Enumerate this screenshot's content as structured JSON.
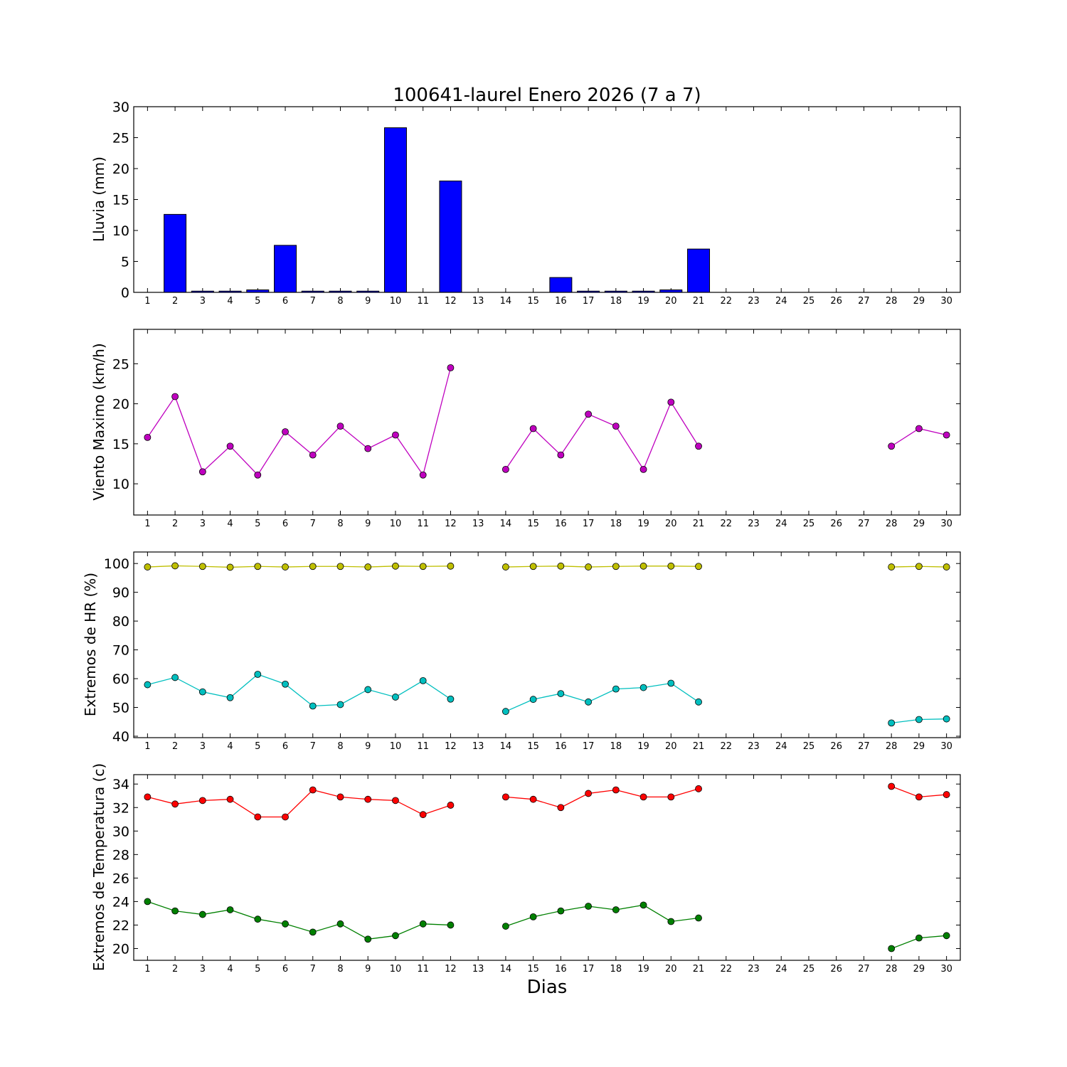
{
  "figure": {
    "title": "100641-laurel Enero 2026  (7 a 7)",
    "xlabel": "Dias"
  },
  "chart_data": [
    {
      "type": "bar",
      "ylabel": "Lluvia (mm)",
      "ylim": [
        0,
        30
      ],
      "yticks": [
        0,
        5,
        10,
        15,
        20,
        25,
        30
      ],
      "categories": [
        1,
        2,
        3,
        4,
        5,
        6,
        7,
        8,
        9,
        10,
        11,
        12,
        13,
        14,
        15,
        16,
        17,
        18,
        19,
        20,
        21,
        22,
        23,
        24,
        25,
        26,
        27,
        28,
        29,
        30
      ],
      "series": [
        {
          "color": "#0000ff",
          "values": [
            0,
            12.6,
            0.2,
            0.2,
            0.4,
            7.6,
            0.2,
            0.2,
            0.2,
            26.6,
            0,
            18.0,
            null,
            0,
            0,
            2.4,
            0.2,
            0.2,
            0.2,
            0.4,
            7.0,
            null,
            null,
            null,
            null,
            null,
            null,
            0,
            0,
            0
          ]
        }
      ]
    },
    {
      "type": "line",
      "ylabel": "Viento Maximo (km/h)",
      "ylim": [
        6.1,
        29.3
      ],
      "yticks": [
        10,
        15,
        20,
        25
      ],
      "categories": [
        1,
        2,
        3,
        4,
        5,
        6,
        7,
        8,
        9,
        10,
        11,
        12,
        13,
        14,
        15,
        16,
        17,
        18,
        19,
        20,
        21,
        22,
        23,
        24,
        25,
        26,
        27,
        28,
        29,
        30
      ],
      "series": [
        {
          "color": "#bf00bf",
          "values": [
            15.8,
            20.9,
            11.5,
            14.7,
            11.1,
            16.5,
            13.6,
            17.2,
            14.4,
            16.1,
            11.1,
            24.5,
            null,
            11.8,
            16.9,
            13.6,
            18.7,
            17.2,
            11.8,
            20.2,
            14.7,
            null,
            null,
            null,
            null,
            null,
            null,
            14.7,
            16.9,
            16.1
          ]
        }
      ]
    },
    {
      "type": "line",
      "ylabel": "Extremos de HR (%)",
      "ylim": [
        39.5,
        104
      ],
      "yticks": [
        40,
        50,
        60,
        70,
        80,
        90,
        100
      ],
      "categories": [
        1,
        2,
        3,
        4,
        5,
        6,
        7,
        8,
        9,
        10,
        11,
        12,
        13,
        14,
        15,
        16,
        17,
        18,
        19,
        20,
        21,
        22,
        23,
        24,
        25,
        26,
        27,
        28,
        29,
        30
      ],
      "series": [
        {
          "color": "#bfbf00",
          "values": [
            98.8,
            99.2,
            99.0,
            98.7,
            99.0,
            98.8,
            99.0,
            99.0,
            98.8,
            99.1,
            99.0,
            99.1,
            null,
            98.8,
            99.0,
            99.1,
            98.8,
            99.0,
            99.1,
            99.1,
            99.0,
            null,
            null,
            null,
            null,
            null,
            null,
            98.8,
            99.0,
            98.8
          ]
        },
        {
          "color": "#00bfbf",
          "values": [
            57.9,
            60.4,
            55.4,
            53.4,
            61.5,
            58.1,
            50.5,
            51.0,
            56.2,
            53.6,
            59.3,
            52.9,
            null,
            48.6,
            52.8,
            54.8,
            51.9,
            56.4,
            56.9,
            58.4,
            51.9,
            null,
            null,
            null,
            null,
            null,
            null,
            44.6,
            45.8,
            46.0
          ]
        }
      ]
    },
    {
      "type": "line",
      "ylabel": "Extremos de Temperatura (c)",
      "ylim": [
        19,
        34.8
      ],
      "yticks": [
        20,
        22,
        24,
        26,
        28,
        30,
        32,
        34
      ],
      "categories": [
        1,
        2,
        3,
        4,
        5,
        6,
        7,
        8,
        9,
        10,
        11,
        12,
        13,
        14,
        15,
        16,
        17,
        18,
        19,
        20,
        21,
        22,
        23,
        24,
        25,
        26,
        27,
        28,
        29,
        30
      ],
      "series": [
        {
          "color": "#ff0000",
          "values": [
            32.9,
            32.3,
            32.6,
            32.7,
            31.2,
            31.2,
            33.5,
            32.9,
            32.7,
            32.6,
            31.4,
            32.2,
            null,
            32.9,
            32.7,
            32.0,
            33.2,
            33.5,
            32.9,
            32.9,
            33.6,
            null,
            null,
            null,
            null,
            null,
            null,
            33.8,
            32.9,
            33.1
          ]
        },
        {
          "color": "#008000",
          "values": [
            24.0,
            23.2,
            22.9,
            23.3,
            22.5,
            22.1,
            21.4,
            22.1,
            20.8,
            21.1,
            22.1,
            22.0,
            null,
            21.9,
            22.7,
            23.2,
            23.6,
            23.3,
            23.7,
            22.3,
            22.6,
            null,
            null,
            null,
            null,
            null,
            null,
            20.0,
            20.9,
            21.1
          ]
        }
      ]
    }
  ]
}
